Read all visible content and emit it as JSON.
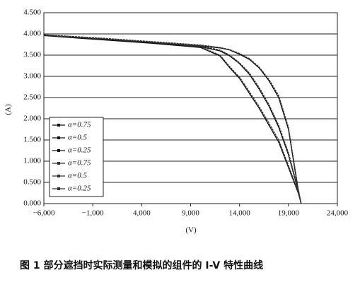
{
  "chart_data": {
    "type": "line",
    "caption": "图 1 部分遮挡时实际测量和模拟的组件的 I-V 特性曲线",
    "xlabel": "(V)",
    "ylabel": "(A)",
    "xlim": [
      -6000,
      24000
    ],
    "xticks": [
      {
        "value": -6000,
        "label": "−6,000"
      },
      {
        "value": -1000,
        "label": "−1,000"
      },
      {
        "value": 4000,
        "label": "4,000"
      },
      {
        "value": 9000,
        "label": "9,000"
      },
      {
        "value": 14000,
        "label": "14,000"
      },
      {
        "value": 19000,
        "label": "19,000"
      },
      {
        "value": 24000,
        "label": "24,000"
      }
    ],
    "ylim": [
      0,
      4.5
    ],
    "yticks": [
      {
        "value": 0,
        "label": "0.000"
      },
      {
        "value": 0.5,
        "label": "0.500"
      },
      {
        "value": 1,
        "label": "1.000"
      },
      {
        "value": 1.5,
        "label": "1.500"
      },
      {
        "value": 2,
        "label": "2.000"
      },
      {
        "value": 2.5,
        "label": "2.500"
      },
      {
        "value": 3,
        "label": "3.000"
      },
      {
        "value": 3.5,
        "label": "3.500"
      },
      {
        "value": 4,
        "label": "4.000"
      },
      {
        "value": 4.5,
        "label": "4.500"
      }
    ],
    "grid": true,
    "legend": "left",
    "x": [
      -6000,
      0,
      5000,
      10000,
      12000,
      13000,
      14000,
      15000,
      16000,
      17000,
      18000,
      19000,
      20000,
      20300
    ],
    "series": [
      {
        "name": "α=0.75",
        "color": "#111111",
        "values": [
          3.97,
          3.88,
          3.8,
          3.72,
          3.67,
          3.62,
          3.52,
          3.4,
          3.2,
          2.9,
          2.5,
          1.75,
          0.3,
          0
        ]
      },
      {
        "name": "α=0.5",
        "color": "#111111",
        "values": [
          3.97,
          3.87,
          3.79,
          3.7,
          3.6,
          3.48,
          3.3,
          3.05,
          2.7,
          2.3,
          1.8,
          1.15,
          0.3,
          0
        ]
      },
      {
        "name": "α=0.25",
        "color": "#111111",
        "values": [
          3.96,
          3.86,
          3.78,
          3.68,
          3.48,
          3.2,
          2.95,
          2.6,
          2.25,
          1.85,
          1.45,
          0.85,
          0.25,
          0
        ]
      },
      {
        "name": "α=0.75",
        "color": "#333333",
        "values": [
          3.98,
          3.9,
          3.82,
          3.74,
          3.68,
          3.63,
          3.54,
          3.42,
          3.22,
          2.93,
          2.55,
          1.8,
          0.35,
          0
        ]
      },
      {
        "name": "α=0.5",
        "color": "#333333",
        "values": [
          3.98,
          3.89,
          3.81,
          3.72,
          3.62,
          3.5,
          3.32,
          3.08,
          2.74,
          2.34,
          1.85,
          1.2,
          0.33,
          0
        ]
      },
      {
        "name": "α=0.25",
        "color": "#333333",
        "values": [
          3.97,
          3.88,
          3.8,
          3.7,
          3.5,
          3.23,
          2.98,
          2.64,
          2.29,
          1.9,
          1.5,
          0.9,
          0.28,
          0
        ]
      }
    ]
  }
}
